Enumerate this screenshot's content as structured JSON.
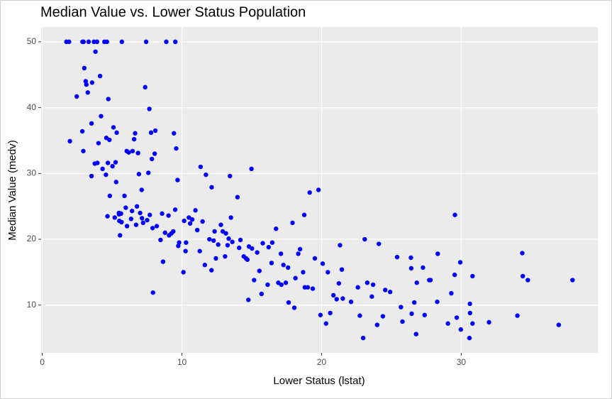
{
  "chart_data": {
    "type": "scatter",
    "title": "Median Value vs. Lower Status Population",
    "x_label": "Lower Status (lstat)",
    "y_label": "Median Value (medv)",
    "color": "#0000ff",
    "grid": true,
    "xlim": [
      -0.08,
      39.78
    ],
    "ylim": [
      2.75,
      52.25
    ],
    "xticks": [
      0,
      10,
      20,
      30
    ],
    "yticks": [
      10,
      20,
      30,
      40,
      50
    ],
    "x": [
      1.98,
      2.47,
      2.87,
      2.94,
      2.96,
      3.01,
      3.11,
      3.16,
      3.26,
      3.53,
      3.53,
      3.57,
      3.7,
      3.76,
      3.81,
      3.95,
      4.03,
      4.14,
      4.21,
      4.32,
      4.45,
      4.56,
      4.59,
      4.63,
      4.67,
      4.7,
      4.73,
      4.81,
      4.84,
      5.03,
      5.1,
      5.19,
      5.25,
      5.29,
      5.33,
      5.49,
      5.5,
      5.52,
      5.57,
      5.64,
      5.68,
      5.7,
      5.89,
      5.98,
      6.05,
      6.07,
      6.19,
      6.36,
      6.43,
      6.47,
      6.58,
      6.65,
      6.72,
      6.78,
      6.86,
      6.92,
      7.01,
      7.12,
      7.14,
      7.22,
      7.37,
      7.44,
      7.51,
      7.6,
      7.67,
      7.7,
      7.79,
      7.85,
      7.9,
      7.93,
      8.05,
      8.1,
      8.2,
      8.47,
      8.58,
      8.65,
      8.79,
      8.88,
      9.04,
      9.08,
      9.25,
      9.38,
      9.43,
      9.52,
      9.59,
      9.69,
      9.74,
      9.8,
      10.11,
      10.16,
      10.26,
      10.3,
      10.5,
      10.59,
      10.74,
      10.97,
      11.1,
      11.28,
      11.34,
      11.48,
      11.64,
      11.72,
      11.97,
      12.12,
      12.13,
      12.27,
      12.34,
      12.43,
      12.6,
      12.79,
      12.92,
      13.09,
      13.15,
      13.27,
      13.35,
      13.44,
      13.51,
      13.61,
      13.98,
      14.1,
      14.19,
      14.43,
      14.59,
      14.69,
      14.76,
      14.8,
      14.98,
      15.02,
      15.17,
      15.39,
      15.55,
      15.7,
      15.79,
      16.14,
      16.21,
      16.42,
      16.47,
      16.74,
      16.9,
      17.09,
      17.12,
      17.27,
      17.44,
      17.6,
      17.64,
      17.92,
      18.05,
      18.13,
      18.33,
      18.46,
      18.68,
      18.76,
      18.8,
      19.01,
      19.15,
      19.37,
      19.52,
      19.78,
      19.92,
      20.08,
      20.32,
      20.45,
      20.62,
      20.85,
      21.08,
      21.24,
      21.32,
      21.45,
      21.52,
      22.11,
      22.6,
      22.74,
      22.98,
      23.09,
      23.27,
      23.6,
      23.69,
      23.98,
      24.1,
      24.39,
      24.56,
      24.91,
      25.41,
      25.68,
      25.79,
      26.4,
      26.42,
      26.45,
      26.64,
      26.77,
      26.82,
      27.26,
      27.38,
      27.71,
      27.8,
      28.28,
      28.32,
      29.05,
      29.29,
      29.53,
      29.55,
      29.68,
      29.93,
      29.97,
      30.59,
      30.62,
      30.63,
      30.81,
      30.81,
      31.99,
      34.02,
      34.37,
      34.41,
      34.77,
      36.98,
      37.97,
      1.73,
      1.92,
      3.32,
      3.92,
      2.88,
      9.53
    ],
    "values": [
      34.9,
      41.7,
      36.4,
      33.4,
      50,
      46,
      44,
      43.5,
      42.3,
      29.6,
      37.6,
      43.8,
      50,
      31.5,
      48.5,
      31.6,
      34.6,
      44.8,
      38.7,
      30.7,
      50,
      29.8,
      35.4,
      50,
      23.5,
      31.6,
      41.3,
      35.1,
      26.6,
      31.1,
      37,
      23.3,
      31.7,
      28.7,
      36.2,
      24,
      23.8,
      22.8,
      20.6,
      23.9,
      22.6,
      50,
      26.6,
      24.8,
      33.4,
      22,
      33.2,
      23.1,
      24.3,
      33.4,
      35.2,
      36.1,
      22.2,
      25,
      33.1,
      29.9,
      24,
      27.5,
      23.2,
      22.5,
      43.1,
      50,
      22.9,
      30.1,
      39.8,
      23.7,
      36.2,
      32.2,
      21.7,
      11.9,
      33,
      36.5,
      22,
      19.9,
      23.9,
      16.6,
      21,
      50,
      23.6,
      20.6,
      20.9,
      21.2,
      36.1,
      24.5,
      33.8,
      29,
      19,
      19.5,
      15,
      22.8,
      18.2,
      19.5,
      23.3,
      22.4,
      23,
      24.4,
      21.4,
      18.2,
      31,
      22.7,
      16.1,
      29.8,
      20,
      15.3,
      27.9,
      19.8,
      21.2,
      17.1,
      19.2,
      22.2,
      21.2,
      17.4,
      20.9,
      19.1,
      20.1,
      29.6,
      23.3,
      19.6,
      26.4,
      18.7,
      19.9,
      17.4,
      17.1,
      16.9,
      10.8,
      18.9,
      30.7,
      18.6,
      13.8,
      18,
      15.2,
      11.7,
      19.4,
      13.1,
      18.8,
      16.4,
      19.5,
      21.6,
      13.4,
      17.8,
      13.1,
      16.1,
      13.4,
      15.7,
      10.4,
      22.5,
      9.6,
      14.1,
      17.8,
      18.5,
      15,
      23.7,
      12.7,
      12.7,
      27.1,
      12.5,
      17.1,
      27.5,
      8.5,
      16.3,
      7.2,
      15,
      8.8,
      11.5,
      10.9,
      13.3,
      19.1,
      15.4,
      11,
      10.5,
      12.7,
      8.4,
      5,
      20,
      13.4,
      11.3,
      13.1,
      7,
      19.3,
      8.3,
      12.3,
      12,
      17.3,
      9.7,
      7.5,
      17.2,
      15.6,
      8.7,
      10.4,
      5.6,
      13.4,
      15.7,
      8.5,
      13.8,
      13.8,
      10.5,
      17.8,
      7.2,
      11.8,
      14.6,
      23.7,
      8.1,
      16.5,
      6.3,
      5,
      10.2,
      8.8,
      7.2,
      14.4,
      7.4,
      8.4,
      17.9,
      14.4,
      13.8,
      7,
      13.8,
      50,
      50,
      50,
      50,
      50,
      50
    ]
  }
}
